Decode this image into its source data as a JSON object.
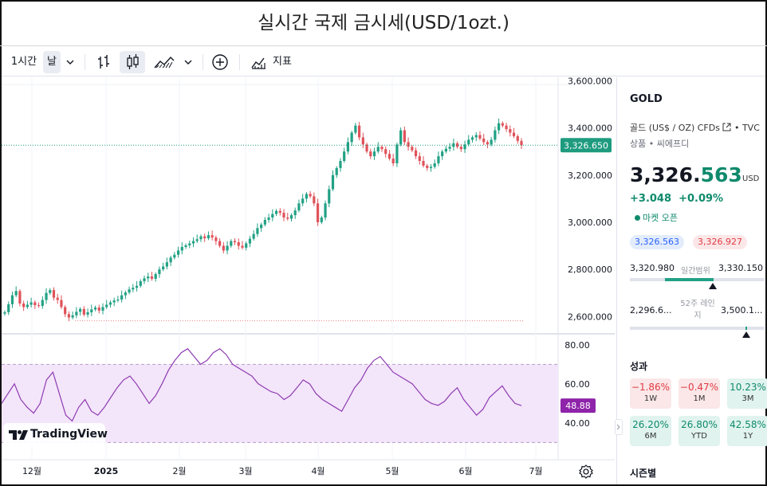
{
  "page_title": "실시간 국제 금시세(USD/1ozt.)",
  "toolbar": {
    "interval": "1시간",
    "period": "날",
    "indicators_label": "지표"
  },
  "chart_data": {
    "type": "candlestick",
    "symbol": "GOLD",
    "price_axis_ticks": [
      "3,600.000",
      "3,400.000",
      "3,200.000",
      "3,000.000",
      "2,800.000",
      "2,600.000"
    ],
    "price_range": [
      2540,
      3615
    ],
    "last_price_label": "3,326.650",
    "last_price": 3326.65,
    "close_series": [
      2618,
      2652,
      2690,
      2708,
      2655,
      2640,
      2650,
      2660,
      2648,
      2645,
      2670,
      2700,
      2712,
      2680,
      2670,
      2640,
      2610,
      2596,
      2605,
      2620,
      2632,
      2608,
      2618,
      2630,
      2638,
      2625,
      2640,
      2650,
      2660,
      2668,
      2672,
      2690,
      2702,
      2715,
      2722,
      2730,
      2750,
      2762,
      2770,
      2760,
      2780,
      2800,
      2812,
      2830,
      2850,
      2862,
      2880,
      2895,
      2902,
      2910,
      2920,
      2928,
      2940,
      2932,
      2945,
      2935,
      2920,
      2900,
      2880,
      2900,
      2920,
      2915,
      2900,
      2892,
      2910,
      2930,
      2950,
      2975,
      2990,
      3010,
      3020,
      3035,
      3048,
      3040,
      3020,
      3015,
      3030,
      3050,
      3080,
      3100,
      3120,
      3110,
      3080,
      3000,
      3020,
      3080,
      3140,
      3200,
      3230,
      3260,
      3300,
      3340,
      3380,
      3410,
      3360,
      3330,
      3300,
      3280,
      3300,
      3320,
      3310,
      3290,
      3270,
      3250,
      3330,
      3390,
      3340,
      3320,
      3305,
      3280,
      3260,
      3240,
      3230,
      3235,
      3250,
      3280,
      3300,
      3312,
      3320,
      3335,
      3320,
      3310,
      3330,
      3350,
      3360,
      3370,
      3355,
      3340,
      3330,
      3350,
      3390,
      3420,
      3410,
      3395,
      3380,
      3365,
      3345,
      3326.65
    ],
    "months": [
      "12월",
      "2025",
      "2월",
      "3월",
      "4월",
      "5월",
      "6월",
      "7월"
    ],
    "rsi": {
      "ticks": [
        "80.00",
        "60.00",
        "40.00"
      ],
      "upper_band": 70,
      "lower_band": 30,
      "last_label": "48.88",
      "last": 48.88,
      "values": [
        50,
        55,
        60,
        52,
        48,
        45,
        50,
        62,
        66,
        55,
        44,
        41,
        48,
        52,
        46,
        44,
        48,
        53,
        58,
        62,
        64,
        60,
        55,
        50,
        54,
        60,
        67,
        72,
        76,
        78,
        74,
        70,
        72,
        76,
        78,
        75,
        70,
        68,
        66,
        64,
        60,
        58,
        56,
        55,
        52,
        54,
        58,
        62,
        60,
        55,
        52,
        50,
        48,
        46,
        52,
        58,
        62,
        68,
        72,
        74,
        70,
        66,
        64,
        62,
        60,
        56,
        52,
        50,
        49,
        51,
        55,
        58,
        52,
        48,
        44,
        47,
        53,
        56,
        59,
        54,
        50,
        48.88
      ]
    },
    "watermark": "TradingView"
  },
  "panel": {
    "symbol": "GOLD",
    "desc": "골드 (US$ / OZ) CFDs",
    "exchange": "TVC",
    "category": "상품 • 씨에프디",
    "price_main": "3,326.",
    "price_frac": "563",
    "currency": "USD",
    "change": "+3.048",
    "change_pct": "+0.09%",
    "market_status": "마켓 오픈",
    "bid": "3,326.563",
    "ask": "3,326.927",
    "day_low": "3,320.980",
    "day_range_label": "일간범위",
    "day_high": "3,330.150",
    "week52_low": "2,296.6...",
    "week52_label": "52주 레인지",
    "week52_high": "3,500.1...",
    "performance_title": "성과",
    "performance": [
      {
        "value": "−1.86%",
        "label": "1W",
        "dir": "neg"
      },
      {
        "value": "−0.47%",
        "label": "1M",
        "dir": "neg"
      },
      {
        "value": "10.23%",
        "label": "3M",
        "dir": "pos"
      },
      {
        "value": "26.20%",
        "label": "6M",
        "dir": "pos"
      },
      {
        "value": "26.80%",
        "label": "YTD",
        "dir": "pos"
      },
      {
        "value": "42.58%",
        "label": "1Y",
        "dir": "pos"
      }
    ],
    "seasonal_title": "시즌별"
  },
  "colors": {
    "up": "#22a185",
    "down": "#e0525a",
    "rsi_line": "#8e3bb1",
    "rsi_band": "#f3e5fa",
    "last_price_tag": "#1e9b7f",
    "rsi_tag": "#8e24aa"
  }
}
